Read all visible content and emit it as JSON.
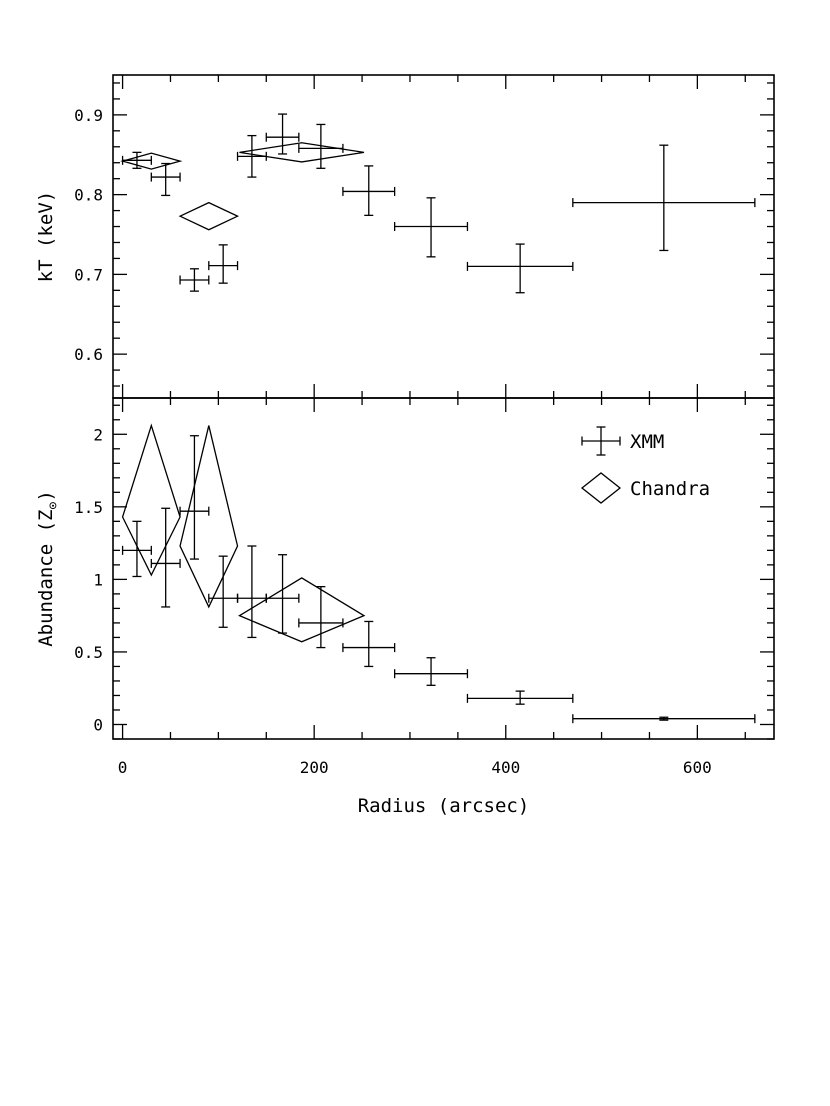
{
  "chart_data": [
    {
      "panel": "top",
      "type": "scatter",
      "title": "",
      "xlabel": "",
      "ylabel": "kT (keV)",
      "xlim": [
        -10,
        680
      ],
      "ylim": [
        0.545,
        0.95
      ],
      "yticks": [
        0.6,
        0.7,
        0.8,
        0.9
      ],
      "ytick_labels": [
        "0.6",
        "0.7",
        "0.8",
        "0.9"
      ],
      "series": [
        {
          "name": "XMM",
          "marker": "cross",
          "points": [
            {
              "x": 15,
              "xerr": 15,
              "y": 0.843,
              "yerr_lo": 0.01,
              "yerr_hi": 0.01
            },
            {
              "x": 45,
              "xerr": 15,
              "y": 0.822,
              "yerr_lo": 0.023,
              "yerr_hi": 0.017
            },
            {
              "x": 75,
              "xerr": 15,
              "y": 0.693,
              "yerr_lo": 0.014,
              "yerr_hi": 0.014
            },
            {
              "x": 105,
              "xerr": 15,
              "y": 0.711,
              "yerr_lo": 0.022,
              "yerr_hi": 0.026
            },
            {
              "x": 135,
              "xerr": 15,
              "y": 0.848,
              "yerr_lo": 0.026,
              "yerr_hi": 0.026
            },
            {
              "x": 167,
              "xerr": 17,
              "y": 0.872,
              "yerr_lo": 0.021,
              "yerr_hi": 0.029
            },
            {
              "x": 207,
              "xerr": 23,
              "y": 0.858,
              "yerr_lo": 0.025,
              "yerr_hi": 0.03
            },
            {
              "x": 257,
              "xerr": 27,
              "y": 0.804,
              "yerr_lo": 0.03,
              "yerr_hi": 0.032
            },
            {
              "x": 322,
              "xerr": 38,
              "y": 0.76,
              "yerr_lo": 0.038,
              "yerr_hi": 0.036
            },
            {
              "x": 415,
              "xerr": 55,
              "y": 0.71,
              "yerr_lo": 0.033,
              "yerr_hi": 0.028
            },
            {
              "x": 565,
              "xerr": 95,
              "y": 0.79,
              "yerr_lo": 0.06,
              "yerr_hi": 0.072
            }
          ]
        },
        {
          "name": "Chandra",
          "marker": "diamond",
          "points": [
            {
              "x": 30,
              "xerr": 30,
              "y": 0.842,
              "yerr_lo": 0.01,
              "yerr_hi": 0.01
            },
            {
              "x": 90,
              "xerr": 30,
              "y": 0.773,
              "yerr_lo": 0.017,
              "yerr_hi": 0.017
            },
            {
              "x": 187,
              "xerr": 65,
              "y": 0.853,
              "yerr_lo": 0.012,
              "yerr_hi": 0.012
            }
          ]
        }
      ]
    },
    {
      "panel": "bottom",
      "type": "scatter",
      "title": "",
      "xlabel": "Radius (arcsec)",
      "ylabel": "Abundance (Z⊙)",
      "xlim": [
        -10,
        680
      ],
      "ylim": [
        -0.1,
        2.25
      ],
      "yticks": [
        0,
        0.5,
        1,
        1.5,
        2
      ],
      "ytick_labels": [
        "0",
        "0.5",
        "1",
        "1.5",
        "2"
      ],
      "xticks": [
        0,
        200,
        400,
        600
      ],
      "xtick_labels": [
        "0",
        "200",
        "400",
        "600"
      ],
      "legend_position": "top-right",
      "series": [
        {
          "name": "XMM",
          "marker": "cross",
          "points": [
            {
              "x": 15,
              "xerr": 15,
              "y": 1.2,
              "yerr_lo": 0.18,
              "yerr_hi": 0.2
            },
            {
              "x": 45,
              "xerr": 15,
              "y": 1.11,
              "yerr_lo": 0.3,
              "yerr_hi": 0.38
            },
            {
              "x": 75,
              "xerr": 15,
              "y": 1.47,
              "yerr_lo": 0.33,
              "yerr_hi": 0.52
            },
            {
              "x": 105,
              "xerr": 15,
              "y": 0.87,
              "yerr_lo": 0.2,
              "yerr_hi": 0.29
            },
            {
              "x": 135,
              "xerr": 15,
              "y": 0.87,
              "yerr_lo": 0.27,
              "yerr_hi": 0.36
            },
            {
              "x": 167,
              "xerr": 17,
              "y": 0.87,
              "yerr_lo": 0.24,
              "yerr_hi": 0.3
            },
            {
              "x": 207,
              "xerr": 23,
              "y": 0.7,
              "yerr_lo": 0.17,
              "yerr_hi": 0.25
            },
            {
              "x": 257,
              "xerr": 27,
              "y": 0.53,
              "yerr_lo": 0.13,
              "yerr_hi": 0.18
            },
            {
              "x": 322,
              "xerr": 38,
              "y": 0.35,
              "yerr_lo": 0.08,
              "yerr_hi": 0.11
            },
            {
              "x": 415,
              "xerr": 55,
              "y": 0.18,
              "yerr_lo": 0.04,
              "yerr_hi": 0.05
            },
            {
              "x": 565,
              "xerr": 95,
              "y": 0.04,
              "yerr_lo": 0.01,
              "yerr_hi": 0.01
            }
          ]
        },
        {
          "name": "Chandra",
          "marker": "diamond",
          "points": [
            {
              "x": 30,
              "xerr": 30,
              "y": 1.43,
              "yerr_lo": 0.4,
              "yerr_hi": 0.63
            },
            {
              "x": 90,
              "xerr": 30,
              "y": 1.23,
              "yerr_lo": 0.42,
              "yerr_hi": 0.83
            },
            {
              "x": 187,
              "xerr": 65,
              "y": 0.75,
              "yerr_lo": 0.18,
              "yerr_hi": 0.26
            }
          ]
        }
      ]
    }
  ]
}
